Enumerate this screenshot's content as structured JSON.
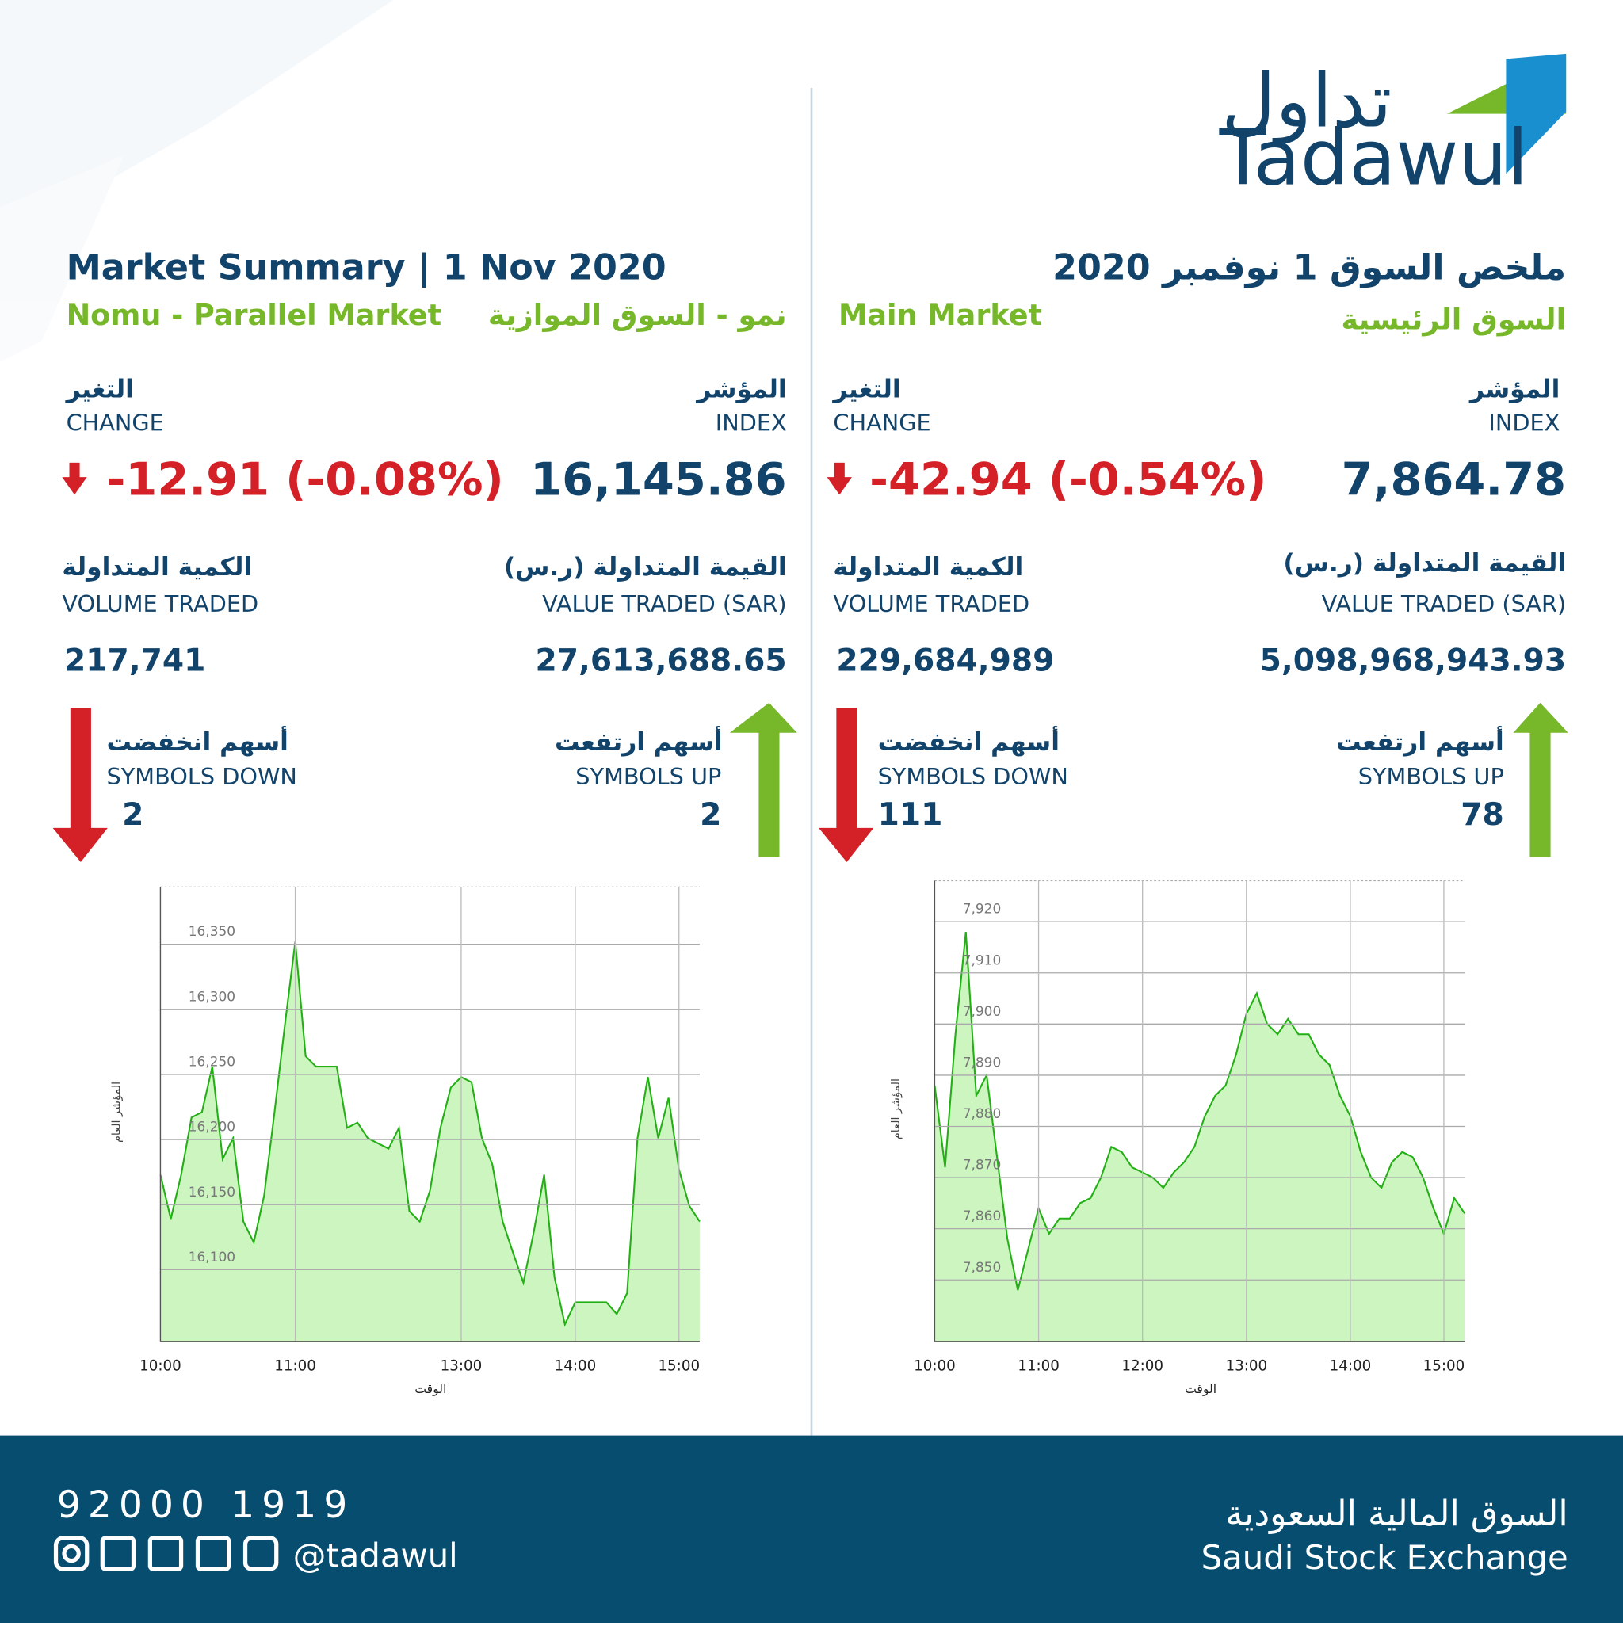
{
  "logo": {
    "arabic": "تداول",
    "english": "Tadawul"
  },
  "header": {
    "title_en": "Market Summary | 1 Nov 2020",
    "title_ar": "ملخص السوق 1 نوفمبر 2020"
  },
  "labels": {
    "index_ar": "المؤشر",
    "index_en": "INDEX",
    "change_ar": "التغير",
    "change_en": "CHANGE",
    "value_ar": "القيمة المتداولة (ر.س)",
    "value_en": "VALUE TRADED (SAR)",
    "volume_ar": "الكمية المتداولة",
    "volume_en": "VOLUME TRADED",
    "up_ar": "أسهم ارتفعت",
    "up_en": "SYMBOLS UP",
    "down_ar": "أسهم انخفضت",
    "down_en": "SYMBOLS DOWN"
  },
  "markets": [
    {
      "name_en": "Nomu - Parallel Market",
      "name_ar": "نمو - السوق الموازية",
      "index": "16,145.86",
      "change": "-12.91 (-0.08%)",
      "value_traded": "27,613,688.65",
      "volume_traded": "217,741",
      "symbols_up": "2",
      "symbols_down": "2"
    },
    {
      "name_en": "Main Market",
      "name_ar": "السوق الرئيسية",
      "index": "7,864.78",
      "change": "-42.94 (-0.54%)",
      "value_traded": "5,098,968,943.93",
      "volume_traded": "229,684,989",
      "symbols_up": "78",
      "symbols_down": "111"
    }
  ],
  "chart_data": [
    {
      "type": "line",
      "x_label": "الوقت",
      "y_label": "المؤشر العام",
      "color": "#22b014",
      "fill_color": "#cdf5c0",
      "grid": true,
      "categories": [
        "10:00",
        null,
        null,
        null,
        null,
        null,
        null,
        null,
        null,
        null,
        null,
        null,
        null,
        "11:00",
        null,
        null,
        null,
        null,
        null,
        null,
        null,
        null,
        null,
        null,
        null,
        null,
        null,
        null,
        null,
        "13:00",
        null,
        null,
        null,
        null,
        null,
        null,
        null,
        null,
        null,
        null,
        "14:00",
        null,
        null,
        null,
        null,
        null,
        null,
        null,
        null,
        null,
        "15:00",
        null,
        null
      ],
      "values": [
        16173,
        16139,
        16173,
        16217,
        16221,
        16256,
        16185,
        16201,
        16137,
        16121,
        16157,
        16221,
        16288,
        16352,
        16264,
        16256,
        16256,
        16256,
        16209,
        16213,
        16201,
        16197,
        16193,
        16209,
        16145,
        16137,
        16161,
        16209,
        16240,
        16248,
        16244,
        16201,
        16181,
        16137,
        16113,
        16090,
        16129,
        16173,
        16094,
        16058,
        16075,
        16075,
        16075,
        16075,
        16066,
        16082,
        16201,
        16248,
        16201,
        16232,
        16177,
        16149,
        16137
      ],
      "ylim": [
        16045,
        16394
      ],
      "yticks": [
        {
          "value": 16100,
          "label": "16,100"
        },
        {
          "value": 16150,
          "label": "16,150"
        },
        {
          "value": 16200,
          "label": "16,200"
        },
        {
          "value": 16250,
          "label": "16,250"
        },
        {
          "value": 16300,
          "label": "16,300"
        },
        {
          "value": 16350,
          "label": "16,350"
        }
      ]
    },
    {
      "type": "line",
      "x_label": "الوقت",
      "y_label": "المؤشر العام",
      "color": "#22b014",
      "fill_color": "#cdf5c0",
      "grid": true,
      "categories": [
        "10:00",
        null,
        null,
        null,
        null,
        null,
        null,
        null,
        null,
        null,
        "11:00",
        null,
        null,
        null,
        null,
        null,
        null,
        null,
        null,
        null,
        "12:00",
        null,
        null,
        null,
        null,
        null,
        null,
        null,
        null,
        null,
        "13:00",
        null,
        null,
        null,
        null,
        null,
        null,
        null,
        null,
        null,
        "14:00",
        null,
        null,
        null,
        null,
        null,
        null,
        null,
        null,
        "15:00",
        null,
        null
      ],
      "values": [
        7888,
        7872,
        7898,
        7918,
        7886,
        7890,
        7874,
        7858,
        7848,
        7856,
        7864,
        7859,
        7862,
        7862,
        7865,
        7866,
        7870,
        7876,
        7875,
        7872,
        7871,
        7870,
        7868,
        7871,
        7873,
        7876,
        7882,
        7886,
        7888,
        7894,
        7902,
        7906,
        7900,
        7898,
        7901,
        7898,
        7898,
        7894,
        7892,
        7886,
        7882,
        7875,
        7870,
        7868,
        7873,
        7875,
        7874,
        7870,
        7864,
        7859,
        7866,
        7863
      ],
      "ylim": [
        7838,
        7928
      ],
      "yticks": [
        {
          "value": 7850,
          "label": "7,850"
        },
        {
          "value": 7860,
          "label": "7,860"
        },
        {
          "value": 7870,
          "label": "7,870"
        },
        {
          "value": 7880,
          "label": "7,880"
        },
        {
          "value": 7890,
          "label": "7,890"
        },
        {
          "value": 7900,
          "label": "7,900"
        },
        {
          "value": 7910,
          "label": "7,910"
        },
        {
          "value": 7920,
          "label": "7,920"
        }
      ]
    }
  ],
  "footer": {
    "phone": "92000 1919",
    "handle": "@tadawul",
    "org_ar": "السوق المالية السعودية",
    "org_en": "Saudi Stock Exchange"
  }
}
